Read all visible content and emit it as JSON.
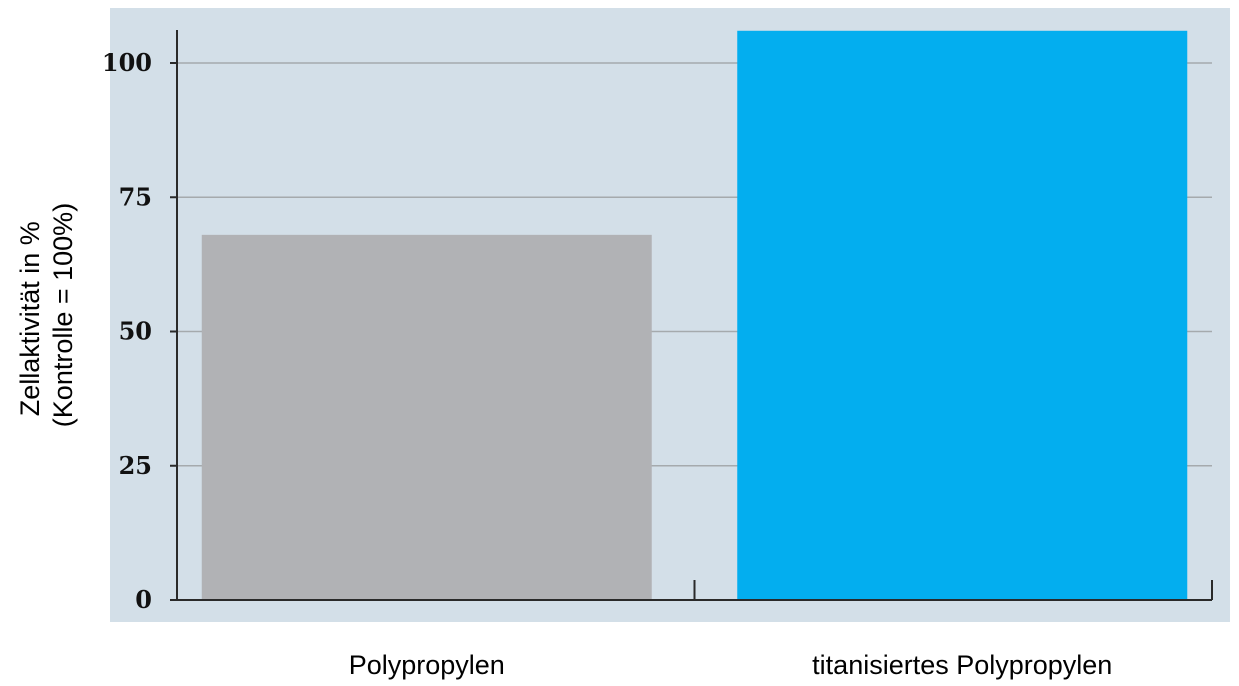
{
  "chart_data": {
    "type": "bar",
    "categories": [
      "Polypropylen",
      "titanisiertes Polypropylen"
    ],
    "values": [
      68,
      106
    ],
    "ylabel_lines": [
      "Zellaktivität in %",
      "(Kontrolle = 100%)"
    ],
    "xlabel": "",
    "title": "",
    "ylim": [
      0,
      110
    ],
    "yticks": [
      0,
      25,
      50,
      75,
      100
    ],
    "grid": true,
    "legend": "none",
    "colors": {
      "background": "#d3dfe8",
      "gridline": "#a5aaad",
      "axis": "#2a2a2a",
      "bars": [
        "#b1b2b5",
        "#03aeef"
      ]
    }
  }
}
